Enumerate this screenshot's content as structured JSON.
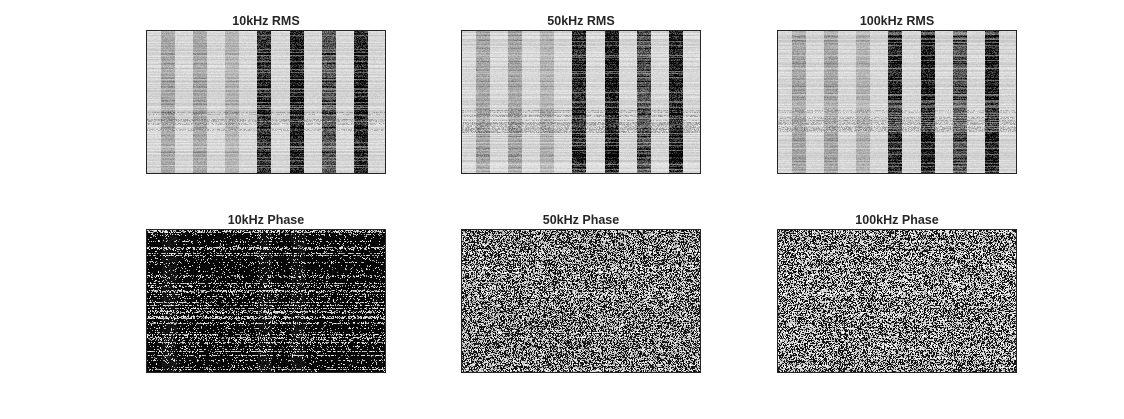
{
  "chart_data": [
    {
      "type": "heatmap",
      "title": "10kHz RMS",
      "colormap": "gray",
      "pattern": "rms",
      "grid": false,
      "xlabel": "",
      "ylabel": ""
    },
    {
      "type": "heatmap",
      "title": "50kHz RMS",
      "colormap": "gray",
      "pattern": "rms",
      "grid": false,
      "xlabel": "",
      "ylabel": ""
    },
    {
      "type": "heatmap",
      "title": "100kHz RMS",
      "colormap": "gray",
      "pattern": "rms",
      "grid": false,
      "xlabel": "",
      "ylabel": ""
    },
    {
      "type": "heatmap",
      "title": "10kHz Phase",
      "colormap": "gray",
      "pattern": "phase-dark",
      "grid": false,
      "xlabel": "",
      "ylabel": ""
    },
    {
      "type": "heatmap",
      "title": "50kHz Phase",
      "colormap": "gray",
      "pattern": "phase-noise",
      "grid": false,
      "xlabel": "",
      "ylabel": ""
    },
    {
      "type": "heatmap",
      "title": "100kHz Phase",
      "colormap": "gray",
      "pattern": "phase-noise",
      "grid": false,
      "xlabel": "",
      "ylabel": ""
    }
  ]
}
